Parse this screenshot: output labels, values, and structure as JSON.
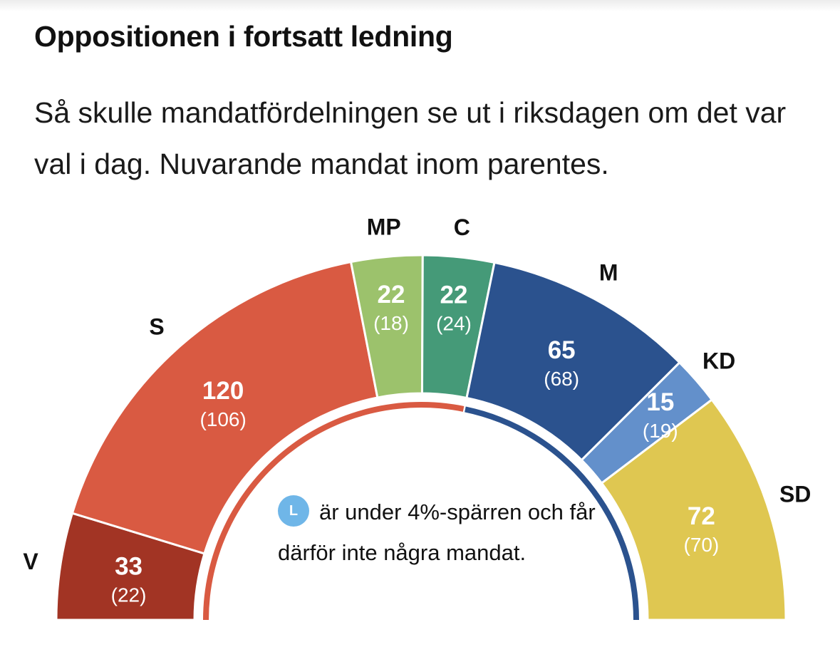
{
  "header": {
    "title": "Oppositionen i fortsatt ledning",
    "subtitle": "Så skulle mandatfördelningen se ut i riksdagen om det var val i dag. Nuvarande mandat inom parentes."
  },
  "chart_data": {
    "type": "parliament-half-donut",
    "total_seats": 349,
    "parties": [
      {
        "party": "V",
        "seats": 33,
        "previous": "(22)",
        "color": "#a23424"
      },
      {
        "party": "S",
        "seats": 120,
        "previous": "(106)",
        "color": "#d95a42"
      },
      {
        "party": "MP",
        "seats": 22,
        "previous": "(18)",
        "color": "#9cc26c"
      },
      {
        "party": "C",
        "seats": 22,
        "previous": "(24)",
        "color": "#459a78"
      },
      {
        "party": "M",
        "seats": 65,
        "previous": "(68)",
        "color": "#2b528e"
      },
      {
        "party": "KD",
        "seats": 15,
        "previous": "(19)",
        "color": "#6390cb"
      },
      {
        "party": "SD",
        "seats": 72,
        "previous": "(70)",
        "color": "#dfc751"
      }
    ],
    "blocs": [
      {
        "parties": [
          "V",
          "S",
          "MP",
          "C"
        ],
        "color": "#d95a42"
      },
      {
        "parties": [
          "M",
          "KD",
          "SD"
        ],
        "color": "#2b528e"
      }
    ]
  },
  "note": {
    "badge": "L",
    "text": "är under 4%-spärren och får därför inte några mandat."
  }
}
